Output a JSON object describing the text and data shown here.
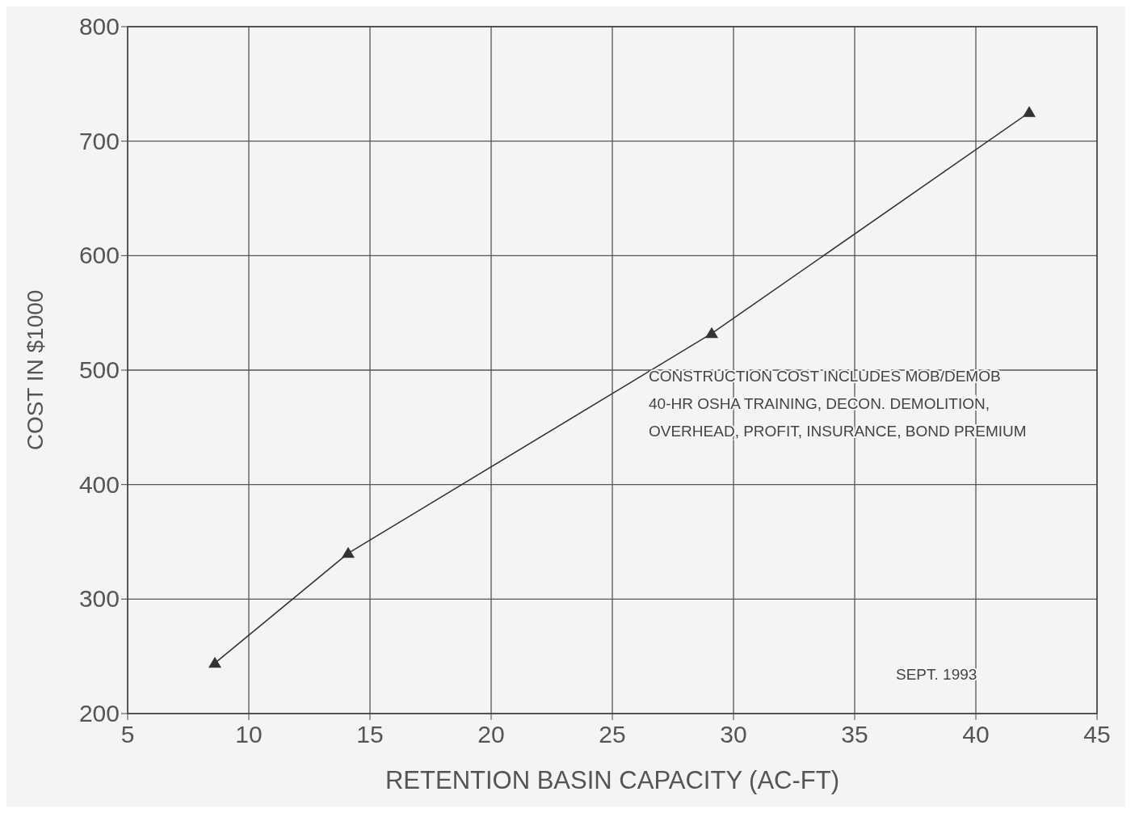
{
  "chart_data": {
    "type": "line",
    "xlabel": "RETENTION BASIN CAPACITY (AC-FT)",
    "ylabel": "COST IN $1000",
    "x": [
      8.6,
      14.1,
      29.1,
      42.2
    ],
    "series": [
      {
        "color": "#333333",
        "values": [
          244,
          340,
          532,
          725
        ]
      }
    ],
    "xlim": [
      5,
      45
    ],
    "xticks": [
      5,
      10,
      15,
      20,
      25,
      30,
      35,
      40,
      45
    ],
    "ylim": [
      200,
      800
    ],
    "yticks": [
      200,
      300,
      400,
      500,
      600,
      700,
      800
    ],
    "grid": true,
    "marker": "triangle",
    "line_style": "solid",
    "annotations": [
      "CONSTRUCTION COST INCLUDES MOB/DEMOB",
      "40-HR OSHA TRAINING, DECON. DEMOLITION,",
      "OVERHEAD, PROFIT, INSURANCE, BOND PREMIUM",
      "SEPT. 1993"
    ]
  }
}
